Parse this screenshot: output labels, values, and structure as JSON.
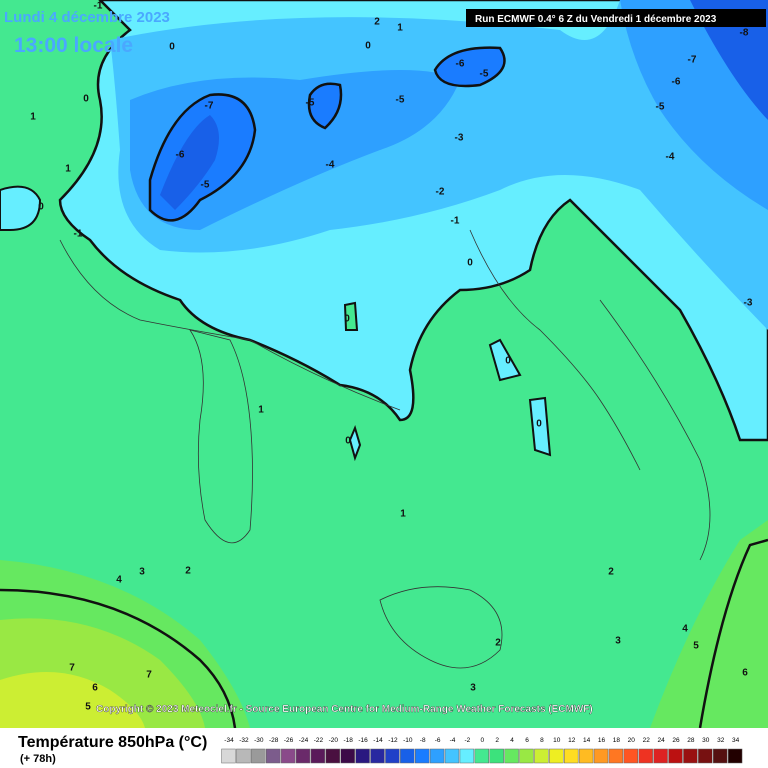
{
  "header": {
    "date": "Lundi 4 décembre 2023",
    "time": "13:00 locale",
    "run": "Run ECMWF 0.4° 6 Z du Vendredi 1 décembre 2023"
  },
  "copyright": "Copyright © 2023 Meteociel.fr - Source European Centre for Medium-Range Weather Forecasts (ECMWF)",
  "footer": {
    "title": "Température 850hPa (°C)",
    "lead": "(+ 78h)"
  },
  "contour_labels": [
    -1,
    2,
    1,
    0,
    0,
    -6,
    -5,
    -8,
    -7,
    -6,
    -5,
    -4,
    0,
    1,
    -7,
    -5,
    -5,
    -6,
    -4,
    -5,
    -3,
    -2,
    -1,
    0,
    1,
    0,
    -1,
    -3,
    0,
    0,
    0,
    1,
    0,
    1,
    2,
    3,
    4,
    2,
    3,
    4,
    5,
    6,
    7,
    7,
    6,
    5,
    2,
    3
  ],
  "legend": {
    "ticks": [
      -34,
      -32,
      -30,
      -28,
      -26,
      -24,
      -22,
      -20,
      -18,
      -16,
      -14,
      -12,
      -10,
      -8,
      -6,
      -4,
      -2,
      0,
      2,
      4,
      6,
      8,
      10,
      12,
      14,
      16,
      18,
      20,
      22,
      24,
      26,
      28,
      30,
      32,
      34
    ],
    "colors": [
      "#d8d8d8",
      "#b8b8b8",
      "#9a9a9a",
      "#7c5c8c",
      "#8a4a8a",
      "#6a2a6a",
      "#5a1a5a",
      "#4a1040",
      "#3c0a48",
      "#2a1880",
      "#2828a0",
      "#2040c8",
      "#1860e8",
      "#1a7cff",
      "#2ea0ff",
      "#44c4ff",
      "#66eeff",
      "#44e890",
      "#3ce27c",
      "#66e860",
      "#99e844",
      "#ccee33",
      "#eeee22",
      "#ffdd22",
      "#ffbb22",
      "#ff9922",
      "#ff7722",
      "#ff5522",
      "#ee3322",
      "#dd2222",
      "#bb1111",
      "#991111",
      "#771111",
      "#551111",
      "#220000"
    ]
  }
}
